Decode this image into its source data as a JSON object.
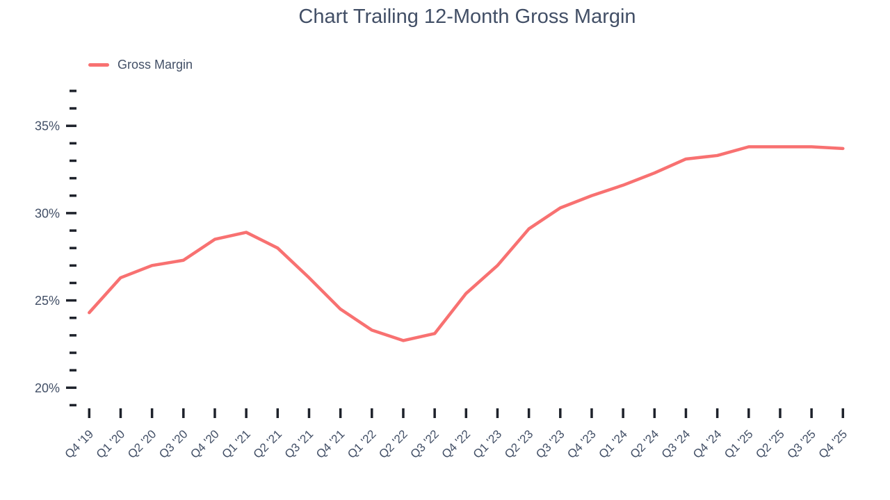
{
  "colors": {
    "background": "#ffffff",
    "line": "#f87171",
    "text": "#424f66",
    "tick": "#1e222b"
  },
  "chart_data": {
    "type": "line",
    "title": "Chart Trailing 12-Month Gross Margin",
    "legend": [
      {
        "label": "Gross Margin",
        "color": "#f87171"
      }
    ],
    "legend_position": "top-left",
    "grid": false,
    "unit": "%",
    "categories": [
      "Q4 '19",
      "Q1 '20",
      "Q2 '20",
      "Q3 '20",
      "Q4 '20",
      "Q1 '21",
      "Q2 '21",
      "Q3 '21",
      "Q4 '21",
      "Q1 '22",
      "Q2 '22",
      "Q3 '22",
      "Q4 '22",
      "Q1 '23",
      "Q2 '23",
      "Q3 '23",
      "Q4 '23",
      "Q1 '24",
      "Q2 '24",
      "Q3 '24",
      "Q4 '24",
      "Q1 '25",
      "Q2 '25",
      "Q3 '25",
      "Q4 '25"
    ],
    "series": [
      {
        "name": "Gross Margin",
        "values": [
          24.3,
          26.3,
          27.0,
          27.3,
          28.5,
          28.9,
          28.0,
          26.3,
          24.5,
          23.3,
          22.7,
          23.1,
          25.4,
          27.0,
          29.1,
          30.3,
          31.0,
          31.6,
          32.3,
          33.1,
          33.3,
          33.8,
          33.8,
          33.8,
          33.7
        ]
      }
    ],
    "y_axis": {
      "min": 19,
      "max": 37,
      "minor_tick_step": 1,
      "labeled_ticks": [
        20,
        25,
        30,
        35
      ],
      "tick_label_suffix": "%"
    },
    "x_axis": {
      "tick_every": 1,
      "label_rotation_deg": -45
    }
  }
}
